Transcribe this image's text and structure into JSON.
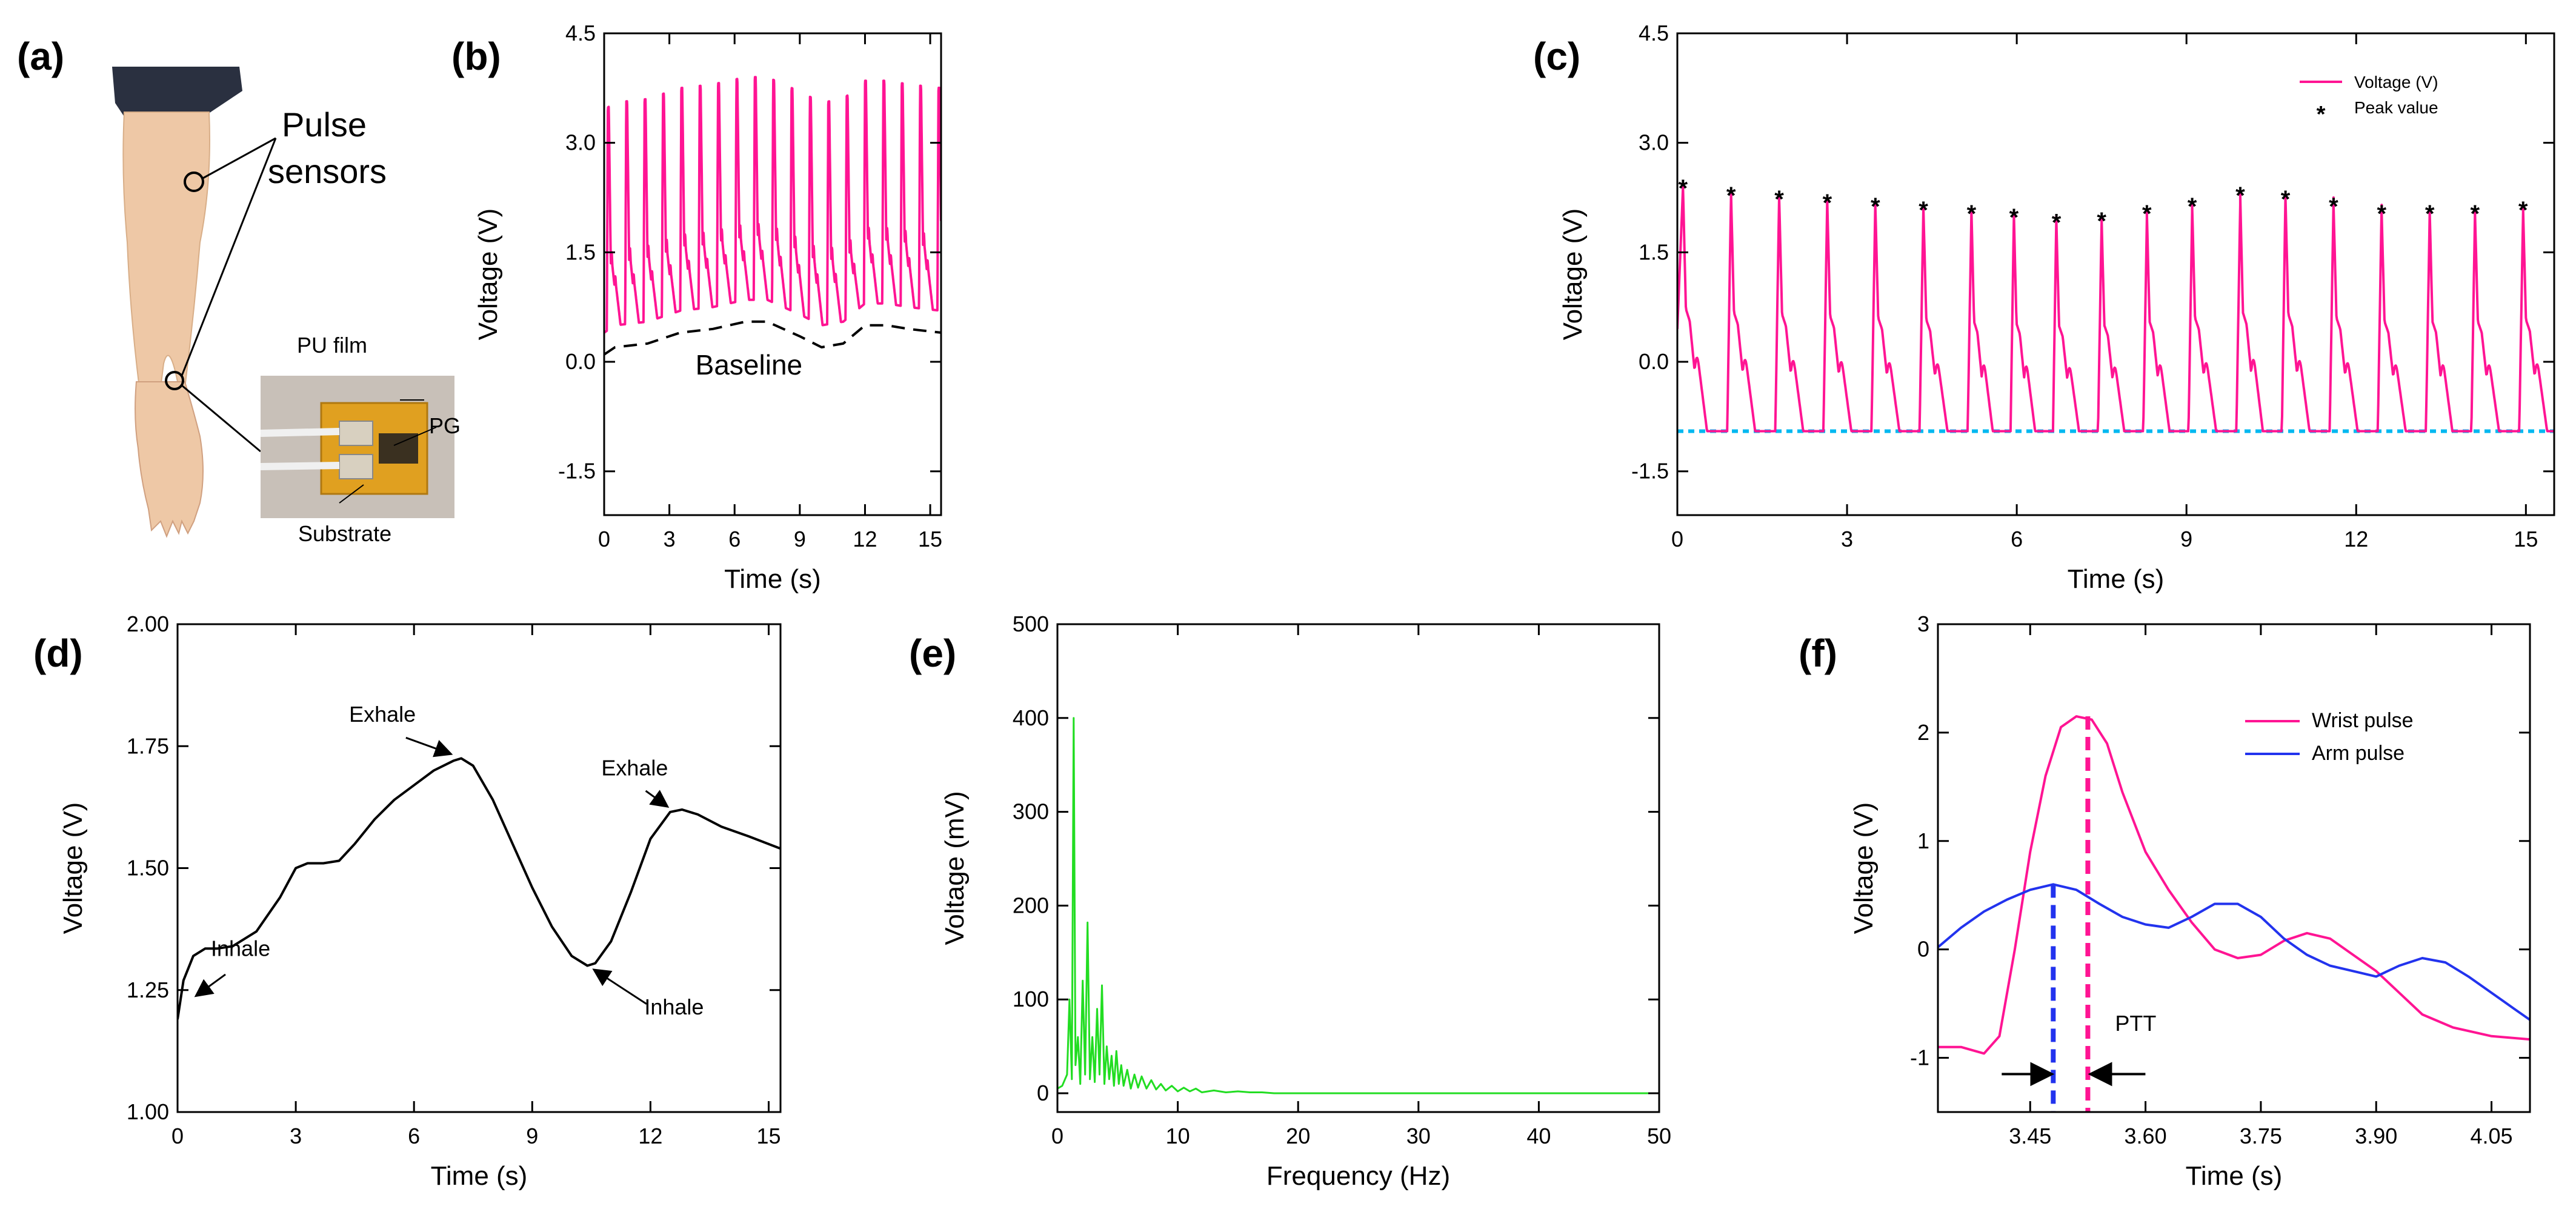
{
  "colors": {
    "pink": "#ff1493",
    "green": "#22dd22",
    "blue": "#2233ee",
    "cyan": "#00b8f0",
    "skin": "#eec8a6",
    "sleeve": "#2a3040",
    "pcb": "#e0a020"
  },
  "panel_a": {
    "label": "(a)",
    "pulse_sensors_line1": "Pulse",
    "pulse_sensors_line2": "sensors",
    "pu_film": "PU film",
    "pg": "PG",
    "substrate": "Substrate"
  },
  "chart_data": [
    {
      "panel": "(b)",
      "type": "line",
      "xlabel": "Time (s)",
      "ylabel": "Voltage (V)",
      "xlim": [
        0,
        15.5
      ],
      "ylim": [
        -2.1,
        4.5
      ],
      "xticks": [
        0,
        3,
        6,
        9,
        12,
        15
      ],
      "xtick_labels": [
        "0",
        "3",
        "6",
        "9",
        "12",
        "15"
      ],
      "yticks": [
        -1.5,
        0,
        1.5,
        3,
        4.5
      ],
      "ytick_labels": [
        "-1.5",
        "0.0",
        "1.5",
        "3.0",
        "4.5"
      ],
      "annotation": "Baseline",
      "annotation_x": 4.2,
      "annotation_y": -0.05,
      "series": [
        {
          "name": "pulse",
          "kind": "pulse_train",
          "period": 0.845,
          "t0": 0.12,
          "amplitude": 3.05,
          "floor_offset": 0.3,
          "x_end": 15.5
        },
        {
          "name": "baseline",
          "kind": "dashed",
          "x": [
            0,
            0.5,
            2,
            3.5,
            5,
            6.5,
            7.5,
            9,
            10,
            11,
            12,
            13,
            14,
            15.5
          ],
          "y": [
            0.1,
            0.2,
            0.25,
            0.4,
            0.45,
            0.55,
            0.55,
            0.35,
            0.2,
            0.25,
            0.5,
            0.5,
            0.45,
            0.4
          ]
        }
      ]
    },
    {
      "panel": "(c)",
      "type": "line",
      "xlabel": "Time (s)",
      "ylabel": "Voltage (V)",
      "xlim": [
        0,
        15.5
      ],
      "ylim": [
        -2.1,
        4.5
      ],
      "xticks": [
        0,
        3,
        6,
        9,
        12,
        15
      ],
      "xtick_labels": [
        "0",
        "3",
        "6",
        "9",
        "12",
        "15"
      ],
      "yticks": [
        -1.5,
        0,
        1.5,
        3,
        4.5
      ],
      "ytick_labels": [
        "-1.5",
        "0.0",
        "1.5",
        "3.0",
        "4.5"
      ],
      "legend": [
        {
          "name": "Voltage (V)",
          "marker": "line"
        },
        {
          "name": "Peak value",
          "marker": "star"
        }
      ],
      "legend_position": "top-right",
      "baseline_y": -0.95,
      "series": [
        {
          "name": "Voltage (V)",
          "kind": "pulse_train_peaks",
          "peaks_x": [
            0.1,
            0.95,
            1.8,
            2.65,
            3.5,
            4.35,
            5.2,
            5.95,
            6.7,
            7.5,
            8.3,
            9.1,
            9.95,
            10.75,
            11.6,
            12.45,
            13.3,
            14.1,
            14.95
          ],
          "peaks_y": [
            2.4,
            2.3,
            2.25,
            2.2,
            2.15,
            2.1,
            2.05,
            2.0,
            1.93,
            1.95,
            2.05,
            2.15,
            2.3,
            2.25,
            2.15,
            2.05,
            2.05,
            2.05,
            2.1
          ],
          "floor": -0.95
        },
        {
          "name": "Peak value",
          "kind": "markers",
          "x": [
            0.1,
            0.95,
            1.8,
            2.65,
            3.5,
            4.35,
            5.2,
            5.95,
            6.7,
            7.5,
            8.3,
            9.1,
            9.95,
            10.75,
            11.6,
            12.45,
            13.3,
            14.1,
            14.95
          ],
          "y": [
            2.4,
            2.3,
            2.25,
            2.2,
            2.15,
            2.1,
            2.05,
            2.0,
            1.93,
            1.95,
            2.05,
            2.15,
            2.3,
            2.25,
            2.15,
            2.05,
            2.05,
            2.05,
            2.1
          ]
        }
      ]
    },
    {
      "panel": "(d)",
      "type": "line",
      "xlabel": "Time (s)",
      "ylabel": "Voltage (V)",
      "xlim": [
        0,
        15.3
      ],
      "ylim": [
        1.0,
        2.0
      ],
      "xticks": [
        0,
        3,
        6,
        9,
        12,
        15
      ],
      "xtick_labels": [
        "0",
        "3",
        "6",
        "9",
        "12",
        "15"
      ],
      "yticks": [
        1.0,
        1.25,
        1.5,
        1.75,
        2.0
      ],
      "ytick_labels": [
        "1.00",
        "1.25",
        "1.50",
        "1.75",
        "2.00"
      ],
      "annotations": [
        {
          "text": "Exhale",
          "tx": 5.2,
          "ty": 1.8,
          "ax": 6.9,
          "ay": 1.735
        },
        {
          "text": "Exhale",
          "tx": 11.6,
          "ty": 1.69,
          "ax": 12.4,
          "ay": 1.628
        },
        {
          "text": "Inhale",
          "tx": 1.6,
          "ty": 1.32,
          "ax": 0.5,
          "ay": 1.24
        },
        {
          "text": "Inhale",
          "tx": 12.6,
          "ty": 1.2,
          "ax": 10.6,
          "ay": 1.29
        }
      ],
      "series": [
        {
          "name": "respiration",
          "x": [
            0,
            0.15,
            0.4,
            0.7,
            1.0,
            1.4,
            2.0,
            2.6,
            3.0,
            3.3,
            3.7,
            4.1,
            4.5,
            5.0,
            5.5,
            6.0,
            6.5,
            7.0,
            7.2,
            7.5,
            8.0,
            8.5,
            9.0,
            9.5,
            10.0,
            10.4,
            10.6,
            11.0,
            11.5,
            12.0,
            12.5,
            12.8,
            13.2,
            13.8,
            14.5,
            15.3
          ],
          "y": [
            1.19,
            1.27,
            1.32,
            1.335,
            1.335,
            1.34,
            1.37,
            1.44,
            1.5,
            1.51,
            1.51,
            1.515,
            1.55,
            1.6,
            1.64,
            1.67,
            1.7,
            1.72,
            1.725,
            1.71,
            1.64,
            1.55,
            1.46,
            1.38,
            1.32,
            1.3,
            1.305,
            1.35,
            1.45,
            1.56,
            1.615,
            1.62,
            1.61,
            1.585,
            1.565,
            1.54
          ]
        }
      ]
    },
    {
      "panel": "(e)",
      "type": "line",
      "xlabel": "Frequency  (Hz)",
      "ylabel": "Voltage (mV)",
      "xlim": [
        0,
        50
      ],
      "ylim": [
        -20,
        500
      ],
      "xticks": [
        0,
        10,
        20,
        30,
        40,
        50
      ],
      "xtick_labels": [
        "0",
        "10",
        "20",
        "30",
        "40",
        "50"
      ],
      "yticks": [
        0,
        100,
        200,
        300,
        400,
        500
      ],
      "ytick_labels": [
        "0",
        "100",
        "200",
        "300",
        "400",
        "500"
      ],
      "series": [
        {
          "name": "spectrum",
          "x": [
            0,
            0.4,
            0.8,
            1.0,
            1.2,
            1.35,
            1.5,
            1.7,
            1.9,
            2.1,
            2.3,
            2.5,
            2.7,
            2.9,
            3.1,
            3.3,
            3.5,
            3.7,
            3.9,
            4.1,
            4.3,
            4.5,
            4.7,
            4.9,
            5.1,
            5.3,
            5.5,
            5.8,
            6.1,
            6.4,
            6.7,
            7.0,
            7.4,
            7.8,
            8.2,
            8.6,
            9.0,
            9.5,
            10.0,
            10.5,
            11.0,
            11.5,
            12.0,
            13.0,
            14.0,
            15.0,
            16.0,
            17.0,
            18.0,
            20.0,
            30.0,
            40.0,
            50.0
          ],
          "y": [
            5,
            8,
            20,
            100,
            15,
            400,
            30,
            60,
            10,
            120,
            20,
            182,
            15,
            60,
            12,
            90,
            20,
            115,
            10,
            50,
            15,
            40,
            8,
            45,
            10,
            30,
            8,
            25,
            5,
            20,
            6,
            18,
            5,
            14,
            4,
            10,
            3,
            8,
            2,
            6,
            2,
            5,
            1,
            3,
            1,
            2,
            1,
            1,
            0,
            0,
            0,
            0,
            0
          ]
        }
      ]
    },
    {
      "panel": "(f)",
      "type": "line",
      "xlabel": "Time (s)",
      "ylabel": "Voltage (V)",
      "xlim": [
        3.33,
        4.1
      ],
      "ylim": [
        -1.5,
        3.0
      ],
      "xticks": [
        3.45,
        3.6,
        3.75,
        3.9,
        4.05
      ],
      "xtick_labels": [
        "3.45",
        "3.60",
        "3.75",
        "3.90",
        "4.05"
      ],
      "yticks": [
        -1,
        0,
        1,
        2,
        3
      ],
      "ytick_labels": [
        "-1",
        "0",
        "1",
        "2",
        "3"
      ],
      "legend": [
        {
          "name": "Wrist pulse",
          "color": "#ff1493"
        },
        {
          "name": "Arm pulse",
          "color": "#2233ee"
        }
      ],
      "legend_position": "top-right",
      "annotation": "PTT",
      "arm_peak_x": 3.48,
      "wrist_peak_x": 3.525,
      "series": [
        {
          "name": "Wrist pulse",
          "x": [
            3.33,
            3.36,
            3.39,
            3.41,
            3.43,
            3.45,
            3.47,
            3.49,
            3.51,
            3.53,
            3.55,
            3.57,
            3.6,
            3.63,
            3.66,
            3.69,
            3.72,
            3.75,
            3.78,
            3.81,
            3.84,
            3.87,
            3.9,
            3.93,
            3.96,
            4.0,
            4.05,
            4.1
          ],
          "y": [
            -0.9,
            -0.9,
            -0.96,
            -0.8,
            0.0,
            0.9,
            1.6,
            2.05,
            2.15,
            2.12,
            1.9,
            1.45,
            0.9,
            0.55,
            0.25,
            0.0,
            -0.08,
            -0.05,
            0.08,
            0.15,
            0.1,
            -0.05,
            -0.2,
            -0.4,
            -0.6,
            -0.72,
            -0.8,
            -0.83
          ]
        },
        {
          "name": "Arm pulse",
          "x": [
            3.33,
            3.36,
            3.39,
            3.42,
            3.45,
            3.48,
            3.51,
            3.54,
            3.57,
            3.6,
            3.63,
            3.66,
            3.69,
            3.72,
            3.75,
            3.78,
            3.81,
            3.84,
            3.87,
            3.9,
            3.93,
            3.96,
            3.99,
            4.02,
            4.05,
            4.08,
            4.1
          ],
          "y": [
            0.02,
            0.2,
            0.35,
            0.46,
            0.55,
            0.6,
            0.55,
            0.42,
            0.3,
            0.23,
            0.2,
            0.3,
            0.42,
            0.42,
            0.3,
            0.1,
            -0.05,
            -0.15,
            -0.2,
            -0.25,
            -0.15,
            -0.08,
            -0.12,
            -0.25,
            -0.4,
            -0.55,
            -0.65
          ]
        }
      ]
    }
  ]
}
